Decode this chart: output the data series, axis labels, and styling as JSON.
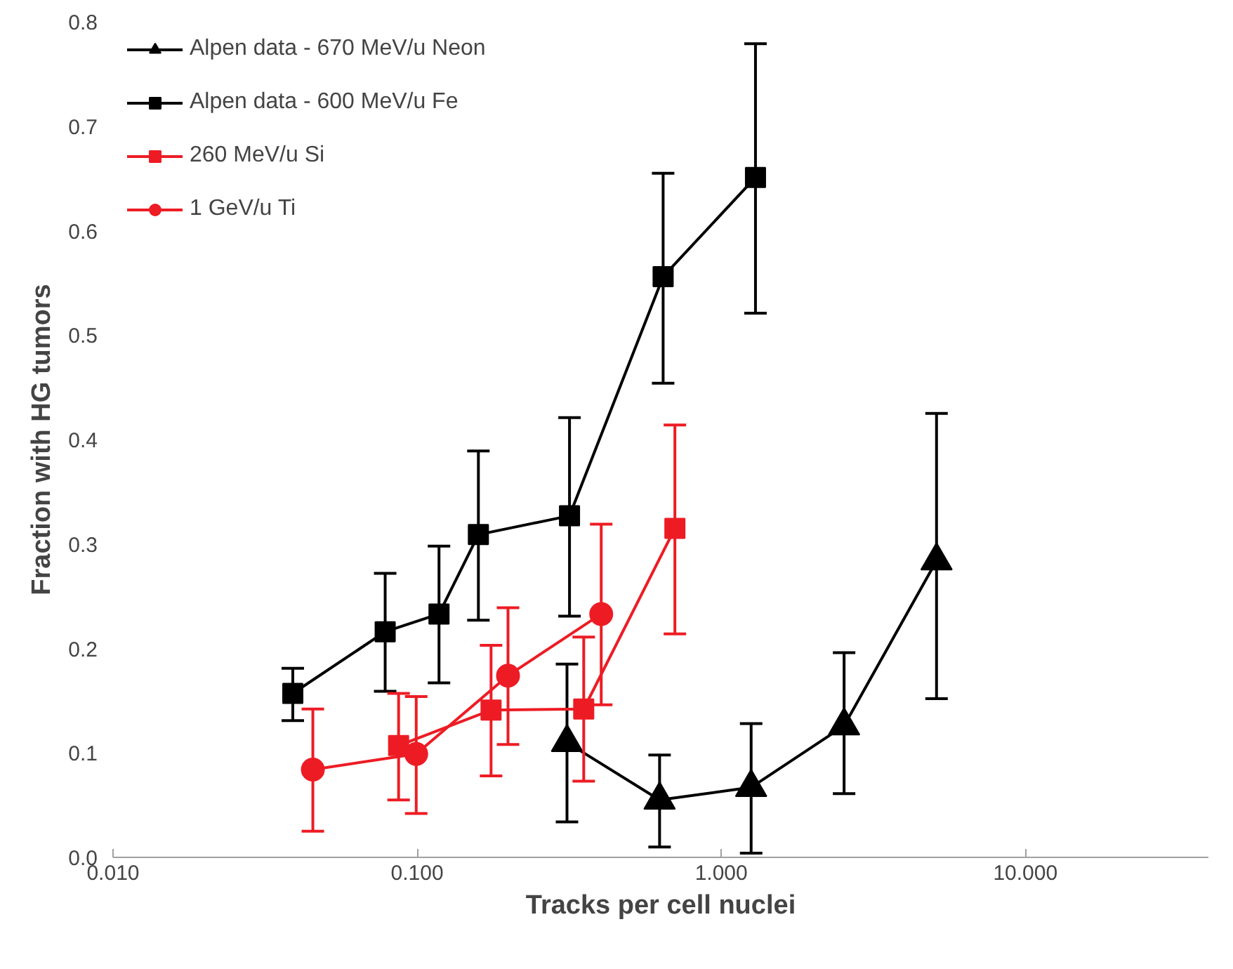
{
  "chart_data": {
    "type": "line",
    "xlabel": "Tracks per cell nuclei",
    "ylabel": "Fraction with HG tumors",
    "log": "x",
    "xlim": [
      0.01,
      40
    ],
    "ylim": [
      0,
      0.8
    ],
    "xticks": [
      {
        "value": 0.01,
        "label": "0.010"
      },
      {
        "value": 0.1,
        "label": "0.100"
      },
      {
        "value": 1,
        "label": "1.000"
      },
      {
        "value": 10,
        "label": "10.000"
      }
    ],
    "yticks": [
      {
        "value": 0,
        "label": "0.0"
      },
      {
        "value": 0.1,
        "label": "0.1"
      },
      {
        "value": 0.2,
        "label": "0.2"
      },
      {
        "value": 0.3,
        "label": "0.3"
      },
      {
        "value": 0.4,
        "label": "0.4"
      },
      {
        "value": 0.5,
        "label": "0.5"
      },
      {
        "value": 0.6,
        "label": "0.6"
      },
      {
        "value": 0.7,
        "label": "0.7"
      },
      {
        "value": 0.8,
        "label": "0.8"
      }
    ],
    "grid": false,
    "legend": "top left",
    "line_style": "solid",
    "series": [
      {
        "name": "Alpen data - 670 MeV/u Neon",
        "color": "#000000",
        "marker": "triangle",
        "x": [
          0.311,
          0.627,
          1.254,
          2.535,
          5.105
        ],
        "values": [
          0.11,
          0.055,
          0.067,
          0.126,
          0.284
        ],
        "errors": [
          [
            0.034,
            0.185
          ],
          [
            0.01,
            0.098
          ],
          [
            0.004,
            0.128
          ],
          [
            0.061,
            0.196
          ],
          [
            0.152,
            0.425
          ]
        ]
      },
      {
        "name": "Alpen data - 600 MeV/u Fe",
        "color": "#000000",
        "marker": "square",
        "x": [
          0.039,
          0.0785,
          0.118,
          0.159,
          0.317,
          0.644,
          1.296
        ],
        "values": [
          0.157,
          0.216,
          0.233,
          0.309,
          0.327,
          0.556,
          0.651
        ],
        "errors": [
          [
            0.131,
            0.181
          ],
          [
            0.159,
            0.272
          ],
          [
            0.167,
            0.298
          ],
          [
            0.227,
            0.389
          ],
          [
            0.231,
            0.421
          ],
          [
            0.454,
            0.655
          ],
          [
            0.521,
            0.779
          ]
        ]
      },
      {
        "name": "260 MeV/u Si",
        "color": "#ed1c24",
        "marker": "square",
        "x": [
          0.0869,
          0.175,
          0.353,
          0.704
        ],
        "values": [
          0.107,
          0.141,
          0.142,
          0.315
        ],
        "errors": [
          [
            0.055,
            0.157
          ],
          [
            0.078,
            0.203
          ],
          [
            0.073,
            0.211
          ],
          [
            0.214,
            0.414
          ]
        ]
      },
      {
        "name": "1 GeV/u Ti",
        "color": "#ed1c24",
        "marker": "circle",
        "x": [
          0.0454,
          0.0993,
          0.199,
          0.403
        ],
        "values": [
          0.084,
          0.099,
          0.174,
          0.233
        ],
        "errors": [
          [
            0.025,
            0.142
          ],
          [
            0.042,
            0.154
          ],
          [
            0.108,
            0.239
          ],
          [
            0.146,
            0.319
          ]
        ]
      }
    ]
  }
}
